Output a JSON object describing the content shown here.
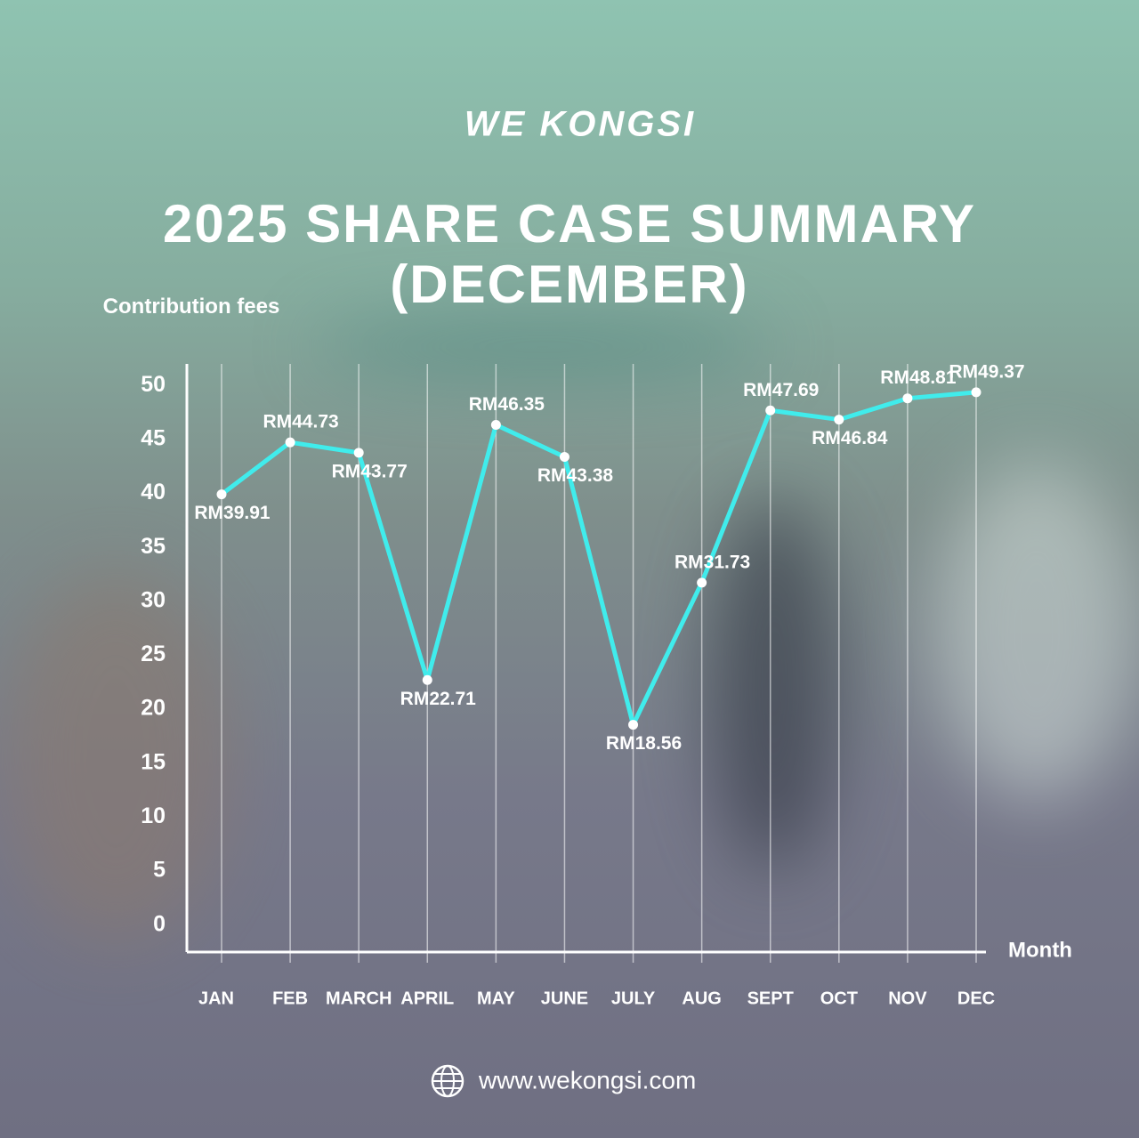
{
  "logo": "WE KONGSI",
  "website": "www.wekongsi.com",
  "chart_data": {
    "type": "line",
    "title": "2025 SHARE CASE SUMMARY",
    "subtitle": "(DECEMBER)",
    "y_label": "Contribution fees",
    "x_label": "Month",
    "categories": [
      "JAN",
      "FEB",
      "MARCH",
      "APRIL",
      "MAY",
      "JUNE",
      "JULY",
      "AUG",
      "SEPT",
      "OCT",
      "NOV",
      "DEC"
    ],
    "series": [
      {
        "color": "#40ecec",
        "values": [
          39.91,
          44.73,
          43.77,
          22.71,
          46.35,
          43.38,
          18.56,
          31.73,
          47.69,
          46.84,
          48.81,
          49.37
        ],
        "value_labels": [
          "RM39.91",
          "RM44.73",
          "RM43.77",
          "RM22.71",
          "RM46.35",
          "RM43.38",
          "RM18.56",
          "RM31.73",
          "RM47.69",
          "RM46.84",
          "RM48.81",
          "RM49.37"
        ]
      }
    ],
    "ylim": [
      -2.5,
      52
    ],
    "yticks": [
      0,
      5,
      10,
      15,
      20,
      25,
      30,
      35,
      40,
      45,
      50
    ],
    "grid": true
  }
}
